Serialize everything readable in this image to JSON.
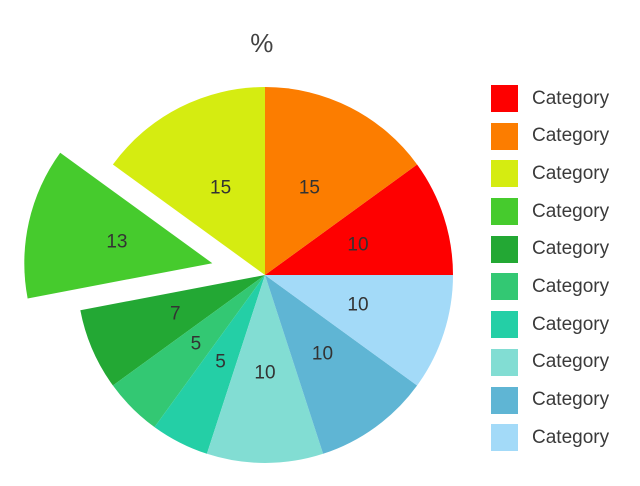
{
  "chart_data": {
    "type": "pie",
    "title": "%",
    "unit": "percent",
    "start_angle_deg": 0,
    "direction": "counterclockwise",
    "labels_shown": "values",
    "legend_position": "right",
    "label_color": "#333333",
    "title_color": "#424242",
    "legend_text_color": "#3a3a3a",
    "series": [
      {
        "label": "Category",
        "value": 10,
        "color": "#fe0000",
        "exploded": false
      },
      {
        "label": "Category",
        "value": 15,
        "color": "#fc7d00",
        "exploded": false
      },
      {
        "label": "Category",
        "value": 15,
        "color": "#d5ec11",
        "exploded": false
      },
      {
        "label": "Category",
        "value": 13,
        "color": "#46cb2d",
        "exploded": true
      },
      {
        "label": "Category",
        "value": 7,
        "color": "#23a834",
        "exploded": false
      },
      {
        "label": "Category",
        "value": 5,
        "color": "#33c873",
        "exploded": false
      },
      {
        "label": "Category",
        "value": 5,
        "color": "#24cfa6",
        "exploded": false
      },
      {
        "label": "Category",
        "value": 10,
        "color": "#82ddd3",
        "exploded": false
      },
      {
        "label": "Category",
        "value": 10,
        "color": "#5fb5d4",
        "exploded": false
      },
      {
        "label": "Category",
        "value": 10,
        "color": "#a3daf8",
        "exploded": false
      }
    ]
  }
}
